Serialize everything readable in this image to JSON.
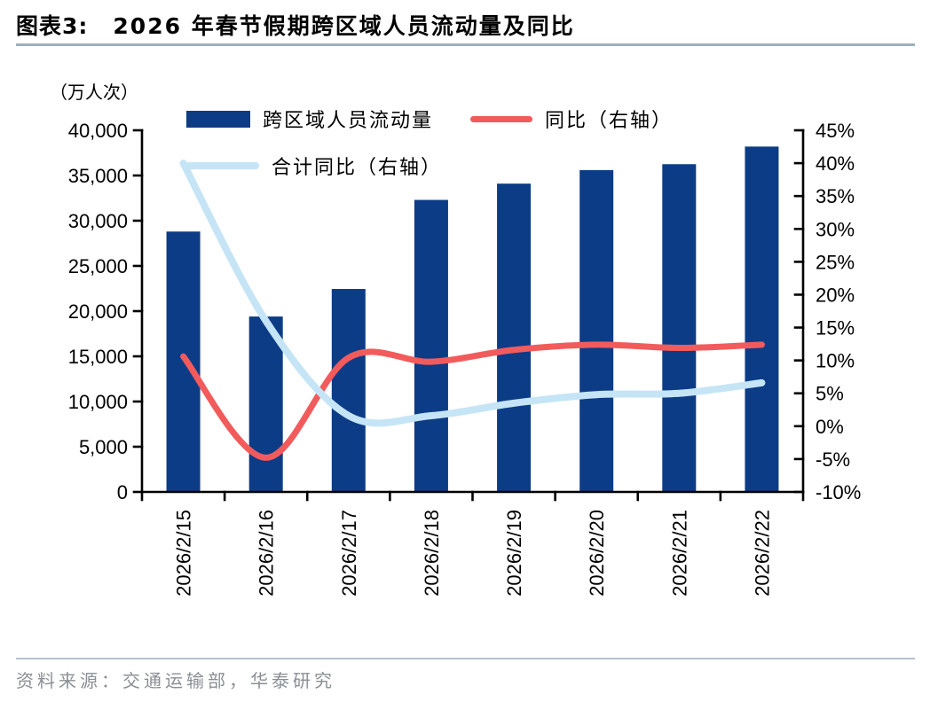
{
  "header": {
    "figure_label": "图表3:",
    "title": "2026 年春节假期跨区域人员流动量及同比"
  },
  "footer": {
    "source_label": "资料来源：",
    "source_text": "交通运输部，华泰研究"
  },
  "chart_data": {
    "type": "bar",
    "subtype": "combo-bar-line-dual-axis",
    "title": "2026 年春节假期跨区域人员流动量及同比",
    "unit_label": "（万人次）",
    "categories": [
      "2026/2/15",
      "2026/2/16",
      "2026/2/17",
      "2026/2/18",
      "2026/2/19",
      "2026/2/20",
      "2026/2/21",
      "2026/2/22"
    ],
    "series": [
      {
        "name": "跨区域人员流动量",
        "type": "bar",
        "axis": "left",
        "color": "#0d3c87",
        "values": [
          28800,
          19400,
          22450,
          32300,
          34100,
          35600,
          36250,
          38200
        ]
      },
      {
        "name": "同比（右轴）",
        "type": "line",
        "axis": "right",
        "color": "#f25b5b",
        "values_pct": [
          10.6,
          -4.8,
          10.4,
          9.8,
          11.6,
          12.4,
          11.9,
          12.4
        ]
      },
      {
        "name": "合计同比（右轴）",
        "type": "line",
        "axis": "right",
        "color": "#c5e5f6",
        "values_pct": [
          40.0,
          16.0,
          1.6,
          1.6,
          3.5,
          4.8,
          5.0,
          6.6
        ]
      }
    ],
    "left_axis": {
      "min": 0,
      "max": 40000,
      "step": 5000,
      "tick_labels": [
        "0",
        "5,000",
        "10,000",
        "15,000",
        "20,000",
        "25,000",
        "30,000",
        "35,000",
        "40,000"
      ]
    },
    "right_axis": {
      "min": -10,
      "max": 45,
      "step": 5,
      "tick_labels": [
        "-10%",
        "-5%",
        "0%",
        "5%",
        "10%",
        "15%",
        "20%",
        "25%",
        "30%",
        "35%",
        "40%",
        "45%"
      ]
    },
    "legend_position": "top-inside",
    "grid": false
  }
}
